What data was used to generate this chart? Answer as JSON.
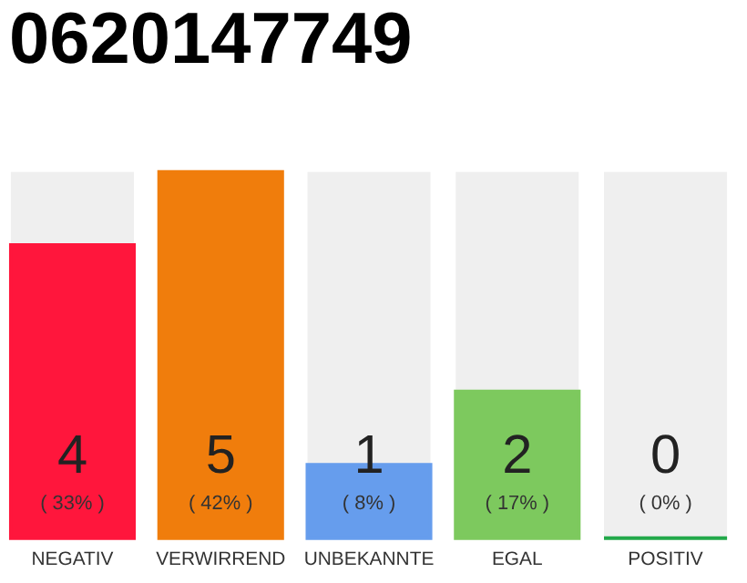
{
  "chart_data": {
    "type": "bar",
    "title": "0620147749",
    "categories": [
      "NEGATIV",
      "VERWIRREND",
      "UNBEKANNTE",
      "EGAL",
      "POSITIV"
    ],
    "values": [
      4,
      5,
      1,
      2,
      0
    ],
    "colors": [
      "#ff163c",
      "#f07d0c",
      "#669ded",
      "#7dc95e",
      "#22a84a"
    ],
    "value_labels": [
      "4",
      "5",
      "1",
      "2",
      "0"
    ],
    "annotations": [
      "( 33% )",
      "( 42% )",
      "( 8% )",
      "( 17% )",
      "( 0% )"
    ],
    "tick_labels": "x"
  }
}
